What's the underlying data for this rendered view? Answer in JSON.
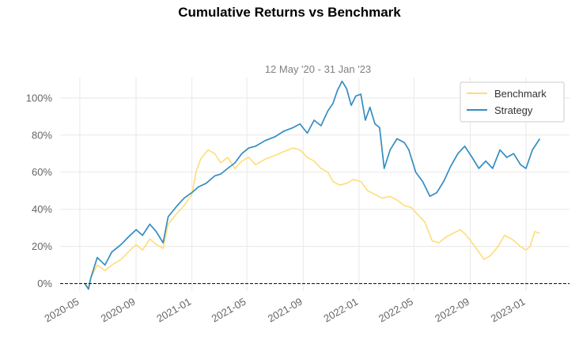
{
  "chart_data": {
    "type": "line",
    "title": "Cumulative Returns vs Benchmark",
    "subtitle": "12 May '20 - 31 Jan '23",
    "xlabel": "",
    "ylabel": "",
    "x_ticks": [
      "2020-05",
      "2020-09",
      "2021-01",
      "2021-05",
      "2021-09",
      "2022-01",
      "2022-05",
      "2022-09",
      "2023-01"
    ],
    "y_ticks": [
      "0%",
      "20%",
      "40%",
      "60%",
      "80%",
      "100%"
    ],
    "ylim": [
      -0.04,
      1.11
    ],
    "xlim": [
      "2020-03-19",
      "2023-04-06"
    ],
    "grid": true,
    "baseline": 0,
    "legend_position": "top-right",
    "colors": {
      "benchmark": "#fedd78",
      "strategy": "#348dc1",
      "baseline": "#000000"
    },
    "series": [
      {
        "name": "Benchmark",
        "points": [
          [
            "2020-05-12",
            0.0
          ],
          [
            "2020-05-20",
            -0.02
          ],
          [
            "2020-05-25",
            0.03
          ],
          [
            "2020-06-08",
            0.1
          ],
          [
            "2020-06-25",
            0.07
          ],
          [
            "2020-07-10",
            0.1
          ],
          [
            "2020-07-30",
            0.13
          ],
          [
            "2020-08-15",
            0.17
          ],
          [
            "2020-09-01",
            0.21
          ],
          [
            "2020-09-15",
            0.18
          ],
          [
            "2020-10-01",
            0.24
          ],
          [
            "2020-10-15",
            0.21
          ],
          [
            "2020-10-30",
            0.19
          ],
          [
            "2020-11-10",
            0.32
          ],
          [
            "2020-11-30",
            0.38
          ],
          [
            "2020-12-15",
            0.42
          ],
          [
            "2021-01-01",
            0.48
          ],
          [
            "2021-01-10",
            0.6
          ],
          [
            "2021-01-20",
            0.67
          ],
          [
            "2021-02-05",
            0.72
          ],
          [
            "2021-02-20",
            0.7
          ],
          [
            "2021-03-05",
            0.65
          ],
          [
            "2021-03-20",
            0.68
          ],
          [
            "2021-04-05",
            0.62
          ],
          [
            "2021-04-20",
            0.66
          ],
          [
            "2021-05-05",
            0.68
          ],
          [
            "2021-05-20",
            0.64
          ],
          [
            "2021-06-10",
            0.67
          ],
          [
            "2021-07-01",
            0.69
          ],
          [
            "2021-07-20",
            0.71
          ],
          [
            "2021-08-10",
            0.73
          ],
          [
            "2021-08-25",
            0.72
          ],
          [
            "2021-09-10",
            0.68
          ],
          [
            "2021-09-25",
            0.66
          ],
          [
            "2021-10-10",
            0.62
          ],
          [
            "2021-10-25",
            0.6
          ],
          [
            "2021-11-05",
            0.55
          ],
          [
            "2021-11-20",
            0.53
          ],
          [
            "2021-12-05",
            0.54
          ],
          [
            "2021-12-20",
            0.56
          ],
          [
            "2022-01-05",
            0.55
          ],
          [
            "2022-01-20",
            0.5
          ],
          [
            "2022-02-05",
            0.48
          ],
          [
            "2022-02-20",
            0.46
          ],
          [
            "2022-03-10",
            0.47
          ],
          [
            "2022-03-25",
            0.45
          ],
          [
            "2022-04-10",
            0.42
          ],
          [
            "2022-04-25",
            0.41
          ],
          [
            "2022-05-10",
            0.37
          ],
          [
            "2022-05-25",
            0.33
          ],
          [
            "2022-06-10",
            0.23
          ],
          [
            "2022-06-25",
            0.22
          ],
          [
            "2022-07-10",
            0.25
          ],
          [
            "2022-07-25",
            0.27
          ],
          [
            "2022-08-10",
            0.29
          ],
          [
            "2022-08-20",
            0.27
          ],
          [
            "2022-09-05",
            0.22
          ],
          [
            "2022-09-20",
            0.17
          ],
          [
            "2022-10-01",
            0.13
          ],
          [
            "2022-10-15",
            0.15
          ],
          [
            "2022-11-01",
            0.2
          ],
          [
            "2022-11-15",
            0.26
          ],
          [
            "2022-12-01",
            0.24
          ],
          [
            "2022-12-20",
            0.2
          ],
          [
            "2023-01-01",
            0.18
          ],
          [
            "2023-01-10",
            0.2
          ],
          [
            "2023-01-20",
            0.28
          ],
          [
            "2023-01-31",
            0.27
          ]
        ]
      },
      {
        "name": "Strategy",
        "points": [
          [
            "2020-05-12",
            0.0
          ],
          [
            "2020-05-20",
            -0.03
          ],
          [
            "2020-05-25",
            0.03
          ],
          [
            "2020-06-08",
            0.14
          ],
          [
            "2020-06-25",
            0.1
          ],
          [
            "2020-07-10",
            0.17
          ],
          [
            "2020-07-30",
            0.21
          ],
          [
            "2020-08-15",
            0.25
          ],
          [
            "2020-09-01",
            0.29
          ],
          [
            "2020-09-15",
            0.26
          ],
          [
            "2020-10-01",
            0.32
          ],
          [
            "2020-10-15",
            0.28
          ],
          [
            "2020-10-30",
            0.22
          ],
          [
            "2020-11-10",
            0.36
          ],
          [
            "2020-11-30",
            0.42
          ],
          [
            "2020-12-15",
            0.46
          ],
          [
            "2021-01-01",
            0.49
          ],
          [
            "2021-01-15",
            0.52
          ],
          [
            "2021-02-01",
            0.54
          ],
          [
            "2021-02-20",
            0.58
          ],
          [
            "2021-03-05",
            0.59
          ],
          [
            "2021-03-20",
            0.62
          ],
          [
            "2021-04-05",
            0.65
          ],
          [
            "2021-04-20",
            0.7
          ],
          [
            "2021-05-05",
            0.73
          ],
          [
            "2021-05-20",
            0.74
          ],
          [
            "2021-06-10",
            0.77
          ],
          [
            "2021-07-01",
            0.79
          ],
          [
            "2021-07-20",
            0.82
          ],
          [
            "2021-08-10",
            0.84
          ],
          [
            "2021-08-25",
            0.86
          ],
          [
            "2021-09-10",
            0.81
          ],
          [
            "2021-09-25",
            0.88
          ],
          [
            "2021-10-10",
            0.85
          ],
          [
            "2021-10-25",
            0.93
          ],
          [
            "2021-11-05",
            0.97
          ],
          [
            "2021-11-15",
            1.04
          ],
          [
            "2021-11-25",
            1.09
          ],
          [
            "2021-12-05",
            1.05
          ],
          [
            "2021-12-15",
            0.96
          ],
          [
            "2021-12-25",
            1.01
          ],
          [
            "2022-01-05",
            1.02
          ],
          [
            "2022-01-15",
            0.88
          ],
          [
            "2022-01-25",
            0.95
          ],
          [
            "2022-02-05",
            0.86
          ],
          [
            "2022-02-15",
            0.84
          ],
          [
            "2022-02-25",
            0.62
          ],
          [
            "2022-03-10",
            0.72
          ],
          [
            "2022-03-25",
            0.78
          ],
          [
            "2022-04-10",
            0.76
          ],
          [
            "2022-04-20",
            0.72
          ],
          [
            "2022-05-05",
            0.6
          ],
          [
            "2022-05-20",
            0.55
          ],
          [
            "2022-06-05",
            0.47
          ],
          [
            "2022-06-20",
            0.49
          ],
          [
            "2022-07-05",
            0.55
          ],
          [
            "2022-07-20",
            0.63
          ],
          [
            "2022-08-05",
            0.7
          ],
          [
            "2022-08-20",
            0.74
          ],
          [
            "2022-09-05",
            0.68
          ],
          [
            "2022-09-20",
            0.62
          ],
          [
            "2022-10-05",
            0.66
          ],
          [
            "2022-10-20",
            0.62
          ],
          [
            "2022-11-05",
            0.72
          ],
          [
            "2022-11-20",
            0.68
          ],
          [
            "2022-12-05",
            0.7
          ],
          [
            "2022-12-20",
            0.64
          ],
          [
            "2023-01-01",
            0.62
          ],
          [
            "2023-01-15",
            0.72
          ],
          [
            "2023-01-31",
            0.78
          ]
        ]
      }
    ]
  }
}
